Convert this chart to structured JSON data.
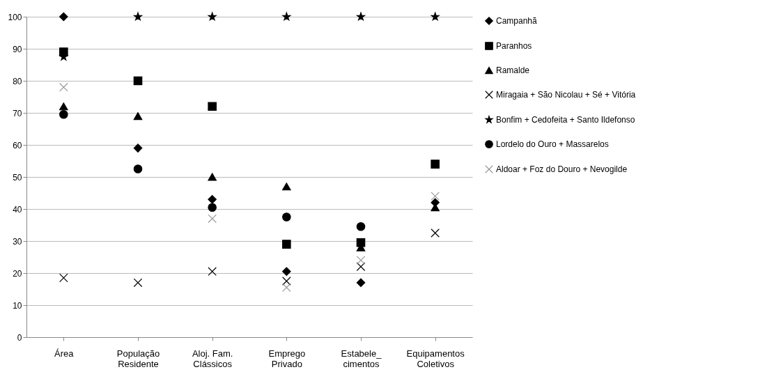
{
  "chart_data": {
    "type": "scatter",
    "categories": [
      "Área",
      "População\nResidente",
      "Aloj. Fam.\nClássicos",
      "Emprego\nPrivado",
      "Estabele_\ncimentos",
      "Equipamentos\nColetivos"
    ],
    "series": [
      {
        "name": "Campanhã",
        "color": "#000000",
        "marker": "diamond",
        "values": [
          100,
          59,
          43,
          20.5,
          17,
          42
        ]
      },
      {
        "name": "Paranhos",
        "color": "#000000",
        "marker": "square",
        "values": [
          89,
          80,
          72,
          29,
          29.5,
          54
        ]
      },
      {
        "name": "Ramalde",
        "color": "#000000",
        "marker": "triangle",
        "values": [
          72,
          69,
          50,
          47,
          28,
          40.5
        ]
      },
      {
        "name": "Miragaia + São Nicolau + Sé + Vitória",
        "color": "#000000",
        "marker": "cross",
        "values": [
          18.5,
          17,
          20.5,
          17.5,
          22,
          32.5
        ]
      },
      {
        "name": "Bonfim + Cedofeita + Santo Ildefonso",
        "color": "#000000",
        "marker": "star",
        "values": [
          87.5,
          100,
          100,
          100,
          100,
          100
        ]
      },
      {
        "name": "Lordelo do Ouro + Massarelos",
        "color": "#000000",
        "marker": "circle",
        "values": [
          69.5,
          52.5,
          40.5,
          37.5,
          34.5,
          null
        ]
      },
      {
        "name": "Aldoar + Foz do Douro + Nevogilde",
        "color": "#999999",
        "marker": "cross",
        "values": [
          78,
          null,
          37,
          15.5,
          24,
          44
        ]
      }
    ],
    "ylim": [
      0,
      100
    ],
    "yticks": [
      0,
      10,
      20,
      30,
      40,
      50,
      60,
      70,
      80,
      90,
      100
    ],
    "grid": "y",
    "legend": "right"
  }
}
